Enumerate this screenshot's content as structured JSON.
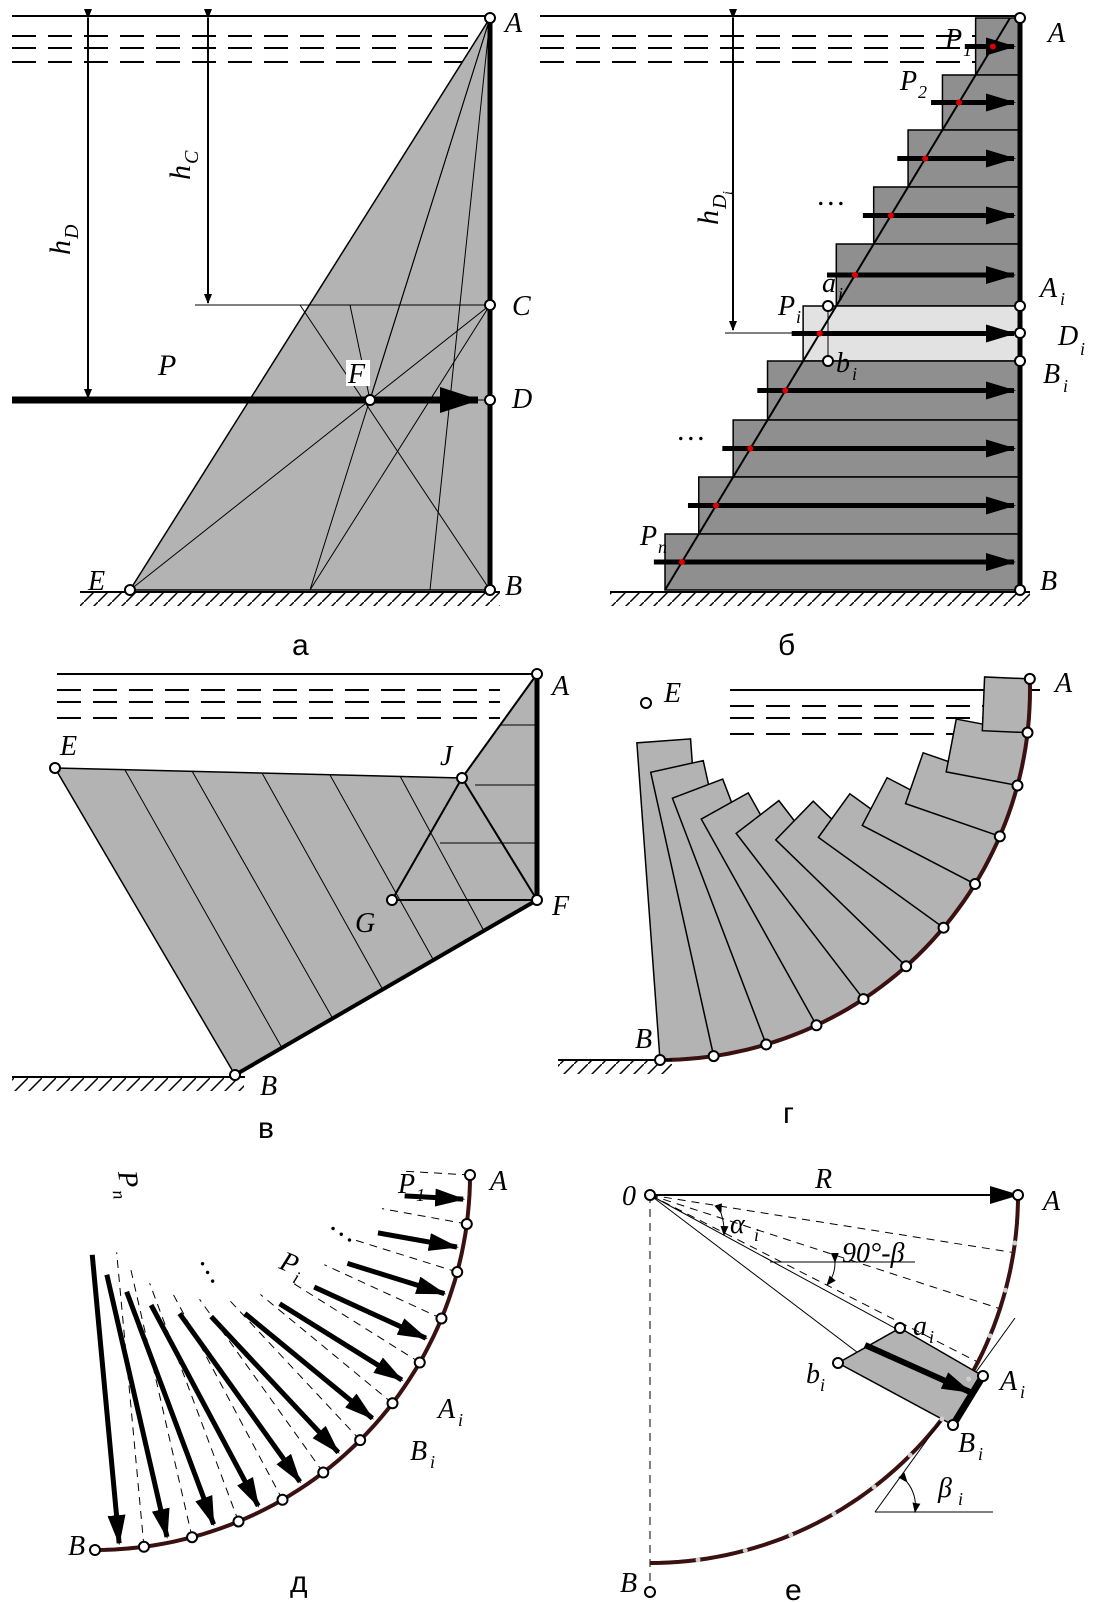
{
  "panels": {
    "a": {
      "caption": "а",
      "labels": {
        "A": "A",
        "B": "B",
        "C": "C",
        "D": "D",
        "E": "E",
        "F": "F",
        "P": "P",
        "hC": "h",
        "hC_sub": "C",
        "hD": "h",
        "hD_sub": "D"
      }
    },
    "b": {
      "caption": "б",
      "labels": {
        "A": "A",
        "B": "B",
        "Ai": "A",
        "Ai_sub": "i",
        "Bi": "B",
        "Bi_sub": "i",
        "Di": "D",
        "Di_sub": "i",
        "ai": "a",
        "ai_sub": "i",
        "bi": "b",
        "bi_sub": "i",
        "P1": "P",
        "P1_sub": "1",
        "P2": "P",
        "P2_sub": "2",
        "Pi": "P",
        "Pi_sub": "i",
        "Pn": "P",
        "Pn_sub": "n",
        "hDi": "h",
        "hDi_sub": "D",
        "hDi_subsub": "i",
        "dots1": "…",
        "dots2": "…"
      }
    },
    "v": {
      "caption": "в",
      "labels": {
        "A": "A",
        "B": "B",
        "E": "E",
        "F": "F",
        "G": "G",
        "J": "J"
      }
    },
    "g": {
      "caption": "г",
      "labels": {
        "A": "A",
        "B": "B",
        "E": "E"
      }
    },
    "d": {
      "caption": "д",
      "labels": {
        "A": "A",
        "B": "B",
        "Ai": "A",
        "Ai_sub": "i",
        "Bi": "B",
        "Bi_sub": "i",
        "P1": "P",
        "P1_sub": "1",
        "Pi": "P",
        "Pi_sub": "i",
        "Pn": "P",
        "Pn_sub": "n",
        "dots1": "…",
        "dots2": "…"
      }
    },
    "e": {
      "caption": "е",
      "labels": {
        "O": "0",
        "R": "R",
        "A": "A",
        "B": "B",
        "Ai": "A",
        "Ai_sub": "i",
        "Bi": "B",
        "Bi_sub": "i",
        "ai": "a",
        "ai_sub": "i",
        "bi": "b",
        "bi_sub": "i",
        "alpha": "α",
        "alpha_sub": "i",
        "angle": "90°-β",
        "beta": "β",
        "beta_sub": "i"
      }
    }
  }
}
